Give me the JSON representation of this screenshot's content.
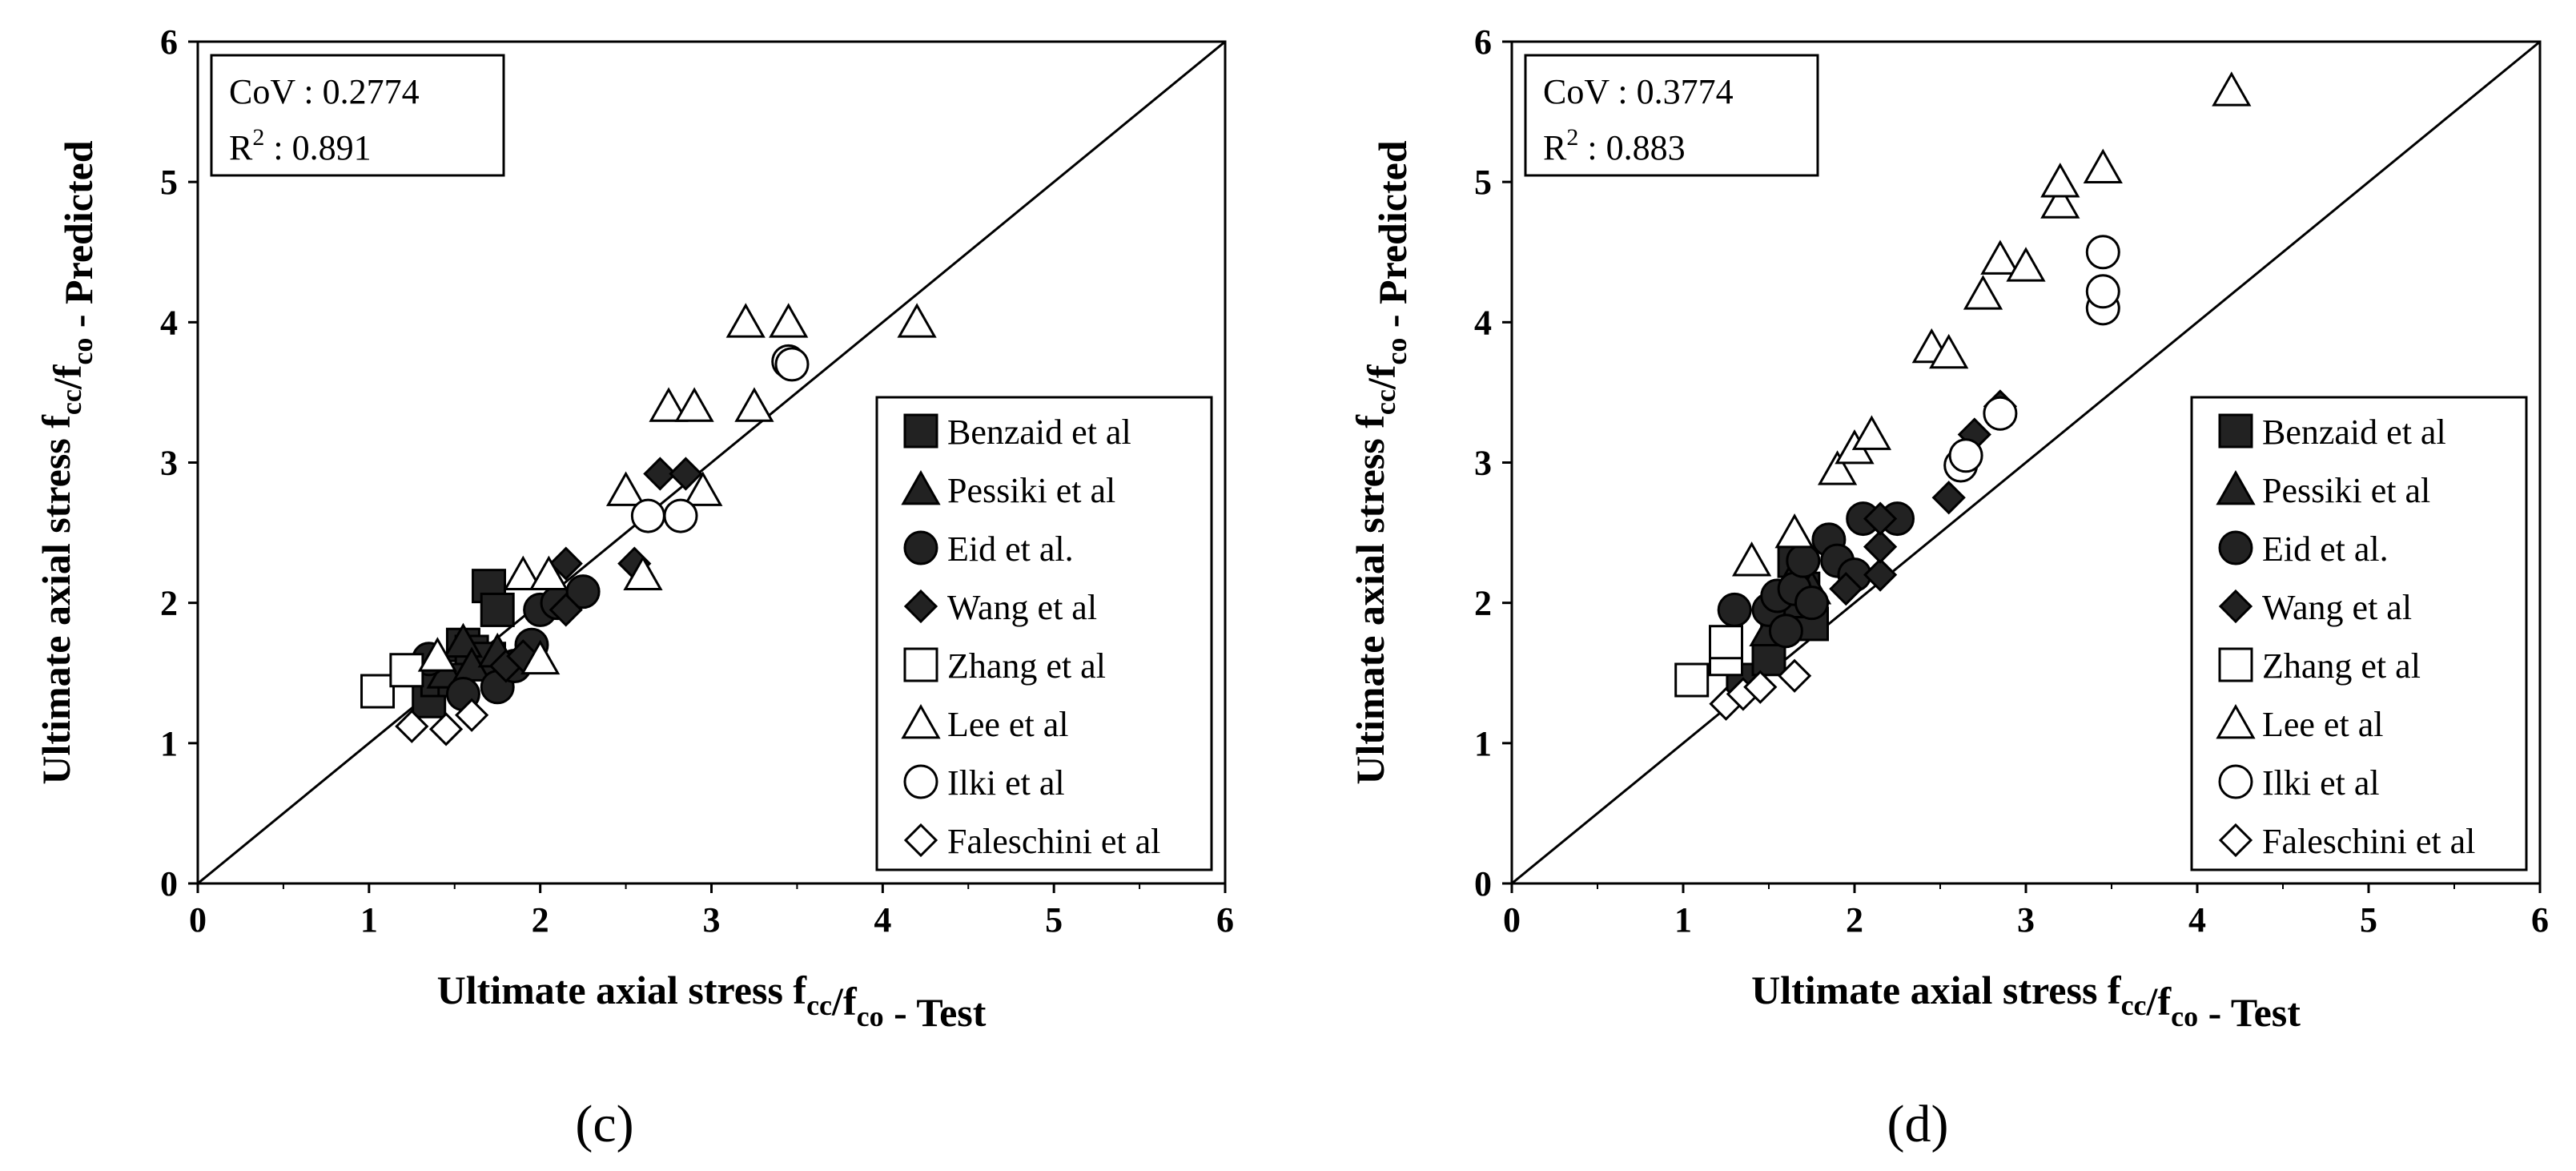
{
  "chart_data": [
    {
      "type": "scatter",
      "panel_label": "(c)",
      "title": "",
      "xlabel": "Ultimate axial stress f_cc/f_co - Test",
      "ylabel": "Ultimate axial stress f_cc/f_co - Predicted",
      "xlim": [
        0,
        6
      ],
      "ylim": [
        0,
        6
      ],
      "xticks": [
        0,
        1,
        2,
        3,
        4,
        5,
        6
      ],
      "yticks": [
        0,
        1,
        2,
        3,
        4,
        5,
        6
      ],
      "reference_line": {
        "from": [
          0,
          0
        ],
        "to": [
          6,
          6
        ]
      },
      "stats": {
        "cov_label": "CoV : ",
        "cov_value": "0.2774",
        "r2_base": "R",
        "r2_exp": "2",
        "r2_sep": " : ",
        "r2_value": "0.891"
      },
      "legend_position": "bottom-right",
      "series": [
        {
          "name": "Benzaid et al",
          "marker": "square",
          "fill": "#222222",
          "points": [
            [
              1.35,
              1.3
            ],
            [
              1.4,
              1.45
            ],
            [
              1.55,
              1.7
            ],
            [
              1.6,
              1.65
            ],
            [
              1.7,
              2.12
            ],
            [
              1.75,
              1.95
            ],
            [
              1.7,
              1.6
            ],
            [
              1.5,
              1.45
            ]
          ]
        },
        {
          "name": "Pessiki et al",
          "marker": "triangle",
          "fill": "#222222",
          "points": [
            [
              1.45,
              1.5
            ],
            [
              1.55,
              1.72
            ],
            [
              1.6,
              1.55
            ],
            [
              1.75,
              1.65
            ]
          ]
        },
        {
          "name": "Eid et al.",
          "marker": "circle",
          "fill": "#222222",
          "points": [
            [
              1.35,
              1.6
            ],
            [
              1.55,
              1.35
            ],
            [
              1.75,
              1.4
            ],
            [
              1.85,
              1.55
            ],
            [
              1.95,
              1.7
            ],
            [
              2.0,
              1.95
            ],
            [
              2.1,
              2.0
            ],
            [
              2.25,
              2.08
            ]
          ]
        },
        {
          "name": "Wang et al",
          "marker": "diamond",
          "fill": "#222222",
          "points": [
            [
              1.8,
              1.55
            ],
            [
              1.9,
              1.62
            ],
            [
              2.15,
              1.95
            ],
            [
              2.15,
              2.28
            ],
            [
              2.55,
              2.28
            ],
            [
              2.7,
              2.92
            ],
            [
              2.85,
              2.92
            ]
          ]
        },
        {
          "name": "Zhang et al",
          "marker": "square",
          "fill": "#ffffff",
          "points": [
            [
              1.05,
              1.37
            ],
            [
              1.22,
              1.52
            ]
          ]
        },
        {
          "name": "Lee et al",
          "marker": "triangle",
          "fill": "#ffffff",
          "points": [
            [
              1.4,
              1.62
            ],
            [
              1.9,
              2.2
            ],
            [
              2.0,
              1.6
            ],
            [
              2.05,
              2.2
            ],
            [
              2.5,
              2.8
            ],
            [
              2.6,
              2.2
            ],
            [
              2.75,
              3.4
            ],
            [
              2.9,
              3.4
            ],
            [
              2.95,
              2.8
            ],
            [
              3.2,
              4.0
            ],
            [
              3.25,
              3.4
            ],
            [
              3.45,
              4.0
            ],
            [
              4.2,
              4.0
            ]
          ]
        },
        {
          "name": "Ilki et al",
          "marker": "circle",
          "fill": "#ffffff",
          "points": [
            [
              2.63,
              2.62
            ],
            [
              2.82,
              2.62
            ],
            [
              3.45,
              3.72
            ],
            [
              3.47,
              3.7
            ]
          ]
        },
        {
          "name": "Faleschini et al",
          "marker": "diamond",
          "fill": "#ffffff",
          "points": [
            [
              1.25,
              1.12
            ],
            [
              1.45,
              1.1
            ],
            [
              1.6,
              1.2
            ]
          ]
        }
      ]
    },
    {
      "type": "scatter",
      "panel_label": "(d)",
      "title": "",
      "xlabel": "Ultimate axial stress f_cc/f_co - Test",
      "ylabel": "Ultimate axial stress f_cc/f_co - Predicted",
      "xlim": [
        0,
        6
      ],
      "ylim": [
        0,
        6
      ],
      "xticks": [
        0,
        1,
        2,
        3,
        4,
        5,
        6
      ],
      "yticks": [
        0,
        1,
        2,
        3,
        4,
        5,
        6
      ],
      "reference_line": {
        "from": [
          0,
          0
        ],
        "to": [
          6,
          6
        ]
      },
      "stats": {
        "cov_label": "CoV : ",
        "cov_value": "0.3774",
        "r2_base": "R",
        "r2_exp": "2",
        "r2_sep": " : ",
        "r2_value": "0.883"
      },
      "legend_position": "bottom-right",
      "series": [
        {
          "name": "Benzaid et al",
          "marker": "square",
          "fill": "#222222",
          "points": [
            [
              1.35,
              1.45
            ],
            [
              1.5,
              1.6
            ],
            [
              1.55,
              1.9
            ],
            [
              1.65,
              2.0
            ],
            [
              1.65,
              2.3
            ],
            [
              1.75,
              1.85
            ],
            [
              1.7,
              2.1
            ]
          ]
        },
        {
          "name": "Pessiki et al",
          "marker": "triangle",
          "fill": "#222222",
          "points": [
            [
              1.5,
              1.8
            ],
            [
              1.6,
              2.0
            ],
            [
              1.65,
              2.2
            ],
            [
              1.75,
              2.1
            ]
          ]
        },
        {
          "name": "Eid et al.",
          "marker": "circle",
          "fill": "#222222",
          "points": [
            [
              1.3,
              1.95
            ],
            [
              1.5,
              1.95
            ],
            [
              1.55,
              2.05
            ],
            [
              1.6,
              1.8
            ],
            [
              1.65,
              2.1
            ],
            [
              1.7,
              2.3
            ],
            [
              1.75,
              2.0
            ],
            [
              1.85,
              2.45
            ],
            [
              1.9,
              2.3
            ],
            [
              2.0,
              2.2
            ],
            [
              2.05,
              2.6
            ],
            [
              2.25,
              2.6
            ]
          ]
        },
        {
          "name": "Wang et al",
          "marker": "diamond",
          "fill": "#222222",
          "points": [
            [
              1.95,
              2.1
            ],
            [
              2.15,
              2.2
            ],
            [
              2.15,
              2.4
            ],
            [
              2.15,
              2.6
            ],
            [
              2.55,
              2.75
            ],
            [
              2.7,
              3.2
            ],
            [
              2.85,
              3.4
            ]
          ]
        },
        {
          "name": "Zhang et al",
          "marker": "square",
          "fill": "#ffffff",
          "points": [
            [
              1.05,
              1.45
            ],
            [
              1.25,
              1.6
            ],
            [
              1.25,
              1.72
            ]
          ]
        },
        {
          "name": "Lee et al",
          "marker": "triangle",
          "fill": "#ffffff",
          "points": [
            [
              1.4,
              2.3
            ],
            [
              1.65,
              2.5
            ],
            [
              1.9,
              2.95
            ],
            [
              2.0,
              3.1
            ],
            [
              2.1,
              3.2
            ],
            [
              2.45,
              3.82
            ],
            [
              2.55,
              3.78
            ],
            [
              2.75,
              4.2
            ],
            [
              2.85,
              4.45
            ],
            [
              3.0,
              4.4
            ],
            [
              3.2,
              4.85
            ],
            [
              3.2,
              5.0
            ],
            [
              3.45,
              5.1
            ],
            [
              4.2,
              5.65
            ]
          ]
        },
        {
          "name": "Ilki et al",
          "marker": "circle",
          "fill": "#ffffff",
          "points": [
            [
              2.62,
              2.98
            ],
            [
              2.65,
              3.05
            ],
            [
              2.85,
              3.35
            ],
            [
              3.45,
              4.1
            ],
            [
              3.45,
              4.22
            ],
            [
              3.45,
              4.5
            ]
          ]
        },
        {
          "name": "Faleschini et al",
          "marker": "diamond",
          "fill": "#ffffff",
          "points": [
            [
              1.25,
              1.28
            ],
            [
              1.35,
              1.35
            ],
            [
              1.45,
              1.4
            ],
            [
              1.65,
              1.48
            ]
          ]
        }
      ]
    }
  ]
}
